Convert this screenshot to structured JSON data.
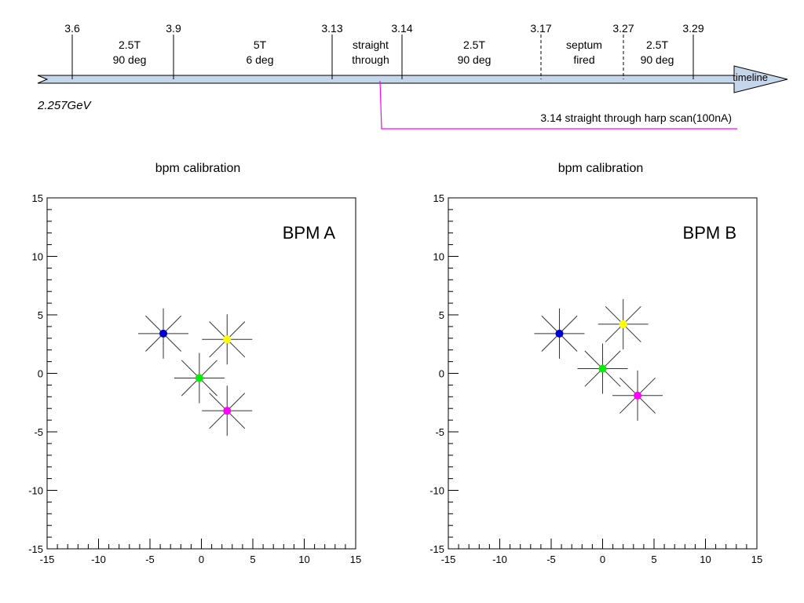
{
  "timeline": {
    "name": "timeline",
    "energy_label": "2.257GeV",
    "run_markers": [
      {
        "value": 3.6,
        "label": "3.6",
        "style": "solid"
      },
      {
        "value": 3.9,
        "label": "3.9",
        "style": "solid"
      },
      {
        "value": 3.13,
        "label": "3.13",
        "style": "solid"
      },
      {
        "value": 3.14,
        "label": "3.14",
        "style": "solid"
      },
      {
        "value": 3.17,
        "label": "3.17",
        "style": "dashed"
      },
      {
        "value": 3.27,
        "label": "3.27",
        "style": "dashed"
      },
      {
        "value": 3.29,
        "label": "3.29",
        "style": "solid"
      }
    ],
    "segments": [
      {
        "line1": "2.5T",
        "line2": "90 deg"
      },
      {
        "line1": "5T",
        "line2": "6 deg"
      },
      {
        "line1": "straight",
        "line2": "through"
      },
      {
        "line1": "2.5T",
        "line2": "90 deg"
      },
      {
        "line1": "septum",
        "line2": "fired"
      },
      {
        "line1": "2.5T",
        "line2": "90 deg"
      }
    ],
    "annotation": "3.14 straight through harp scan(100nA)",
    "colors": {
      "band": "#c5d5ea",
      "annotation": "#ff00ff"
    }
  },
  "chart_data": [
    {
      "type": "scatter",
      "title": "bpm calibration",
      "label": "BPM A",
      "xlim": [
        -15,
        15
      ],
      "ylim": [
        -15,
        15
      ],
      "x_ticks": [
        -15,
        -10,
        -5,
        0,
        5,
        10,
        15
      ],
      "y_ticks": [
        -15,
        -10,
        -5,
        0,
        5,
        10,
        15
      ],
      "points": [
        {
          "x": -3.7,
          "y": 3.4,
          "color": "#0000cc"
        },
        {
          "x": 2.5,
          "y": 2.9,
          "color": "#ffff00"
        },
        {
          "x": -0.2,
          "y": -0.4,
          "color": "#00ee00"
        },
        {
          "x": 2.5,
          "y": -3.2,
          "color": "#ff00ff"
        }
      ]
    },
    {
      "type": "scatter",
      "title": "bpm calibration",
      "label": "BPM B",
      "xlim": [
        -15,
        15
      ],
      "ylim": [
        -15,
        15
      ],
      "x_ticks": [
        -15,
        -10,
        -5,
        0,
        5,
        10,
        15
      ],
      "y_ticks": [
        -15,
        -10,
        -5,
        0,
        5,
        10,
        15
      ],
      "points": [
        {
          "x": -4.2,
          "y": 3.4,
          "color": "#0000cc"
        },
        {
          "x": 2.0,
          "y": 4.2,
          "color": "#ffff00"
        },
        {
          "x": 0.0,
          "y": 0.4,
          "color": "#00ee00"
        },
        {
          "x": 3.4,
          "y": -1.9,
          "color": "#ff00ff"
        }
      ]
    }
  ]
}
